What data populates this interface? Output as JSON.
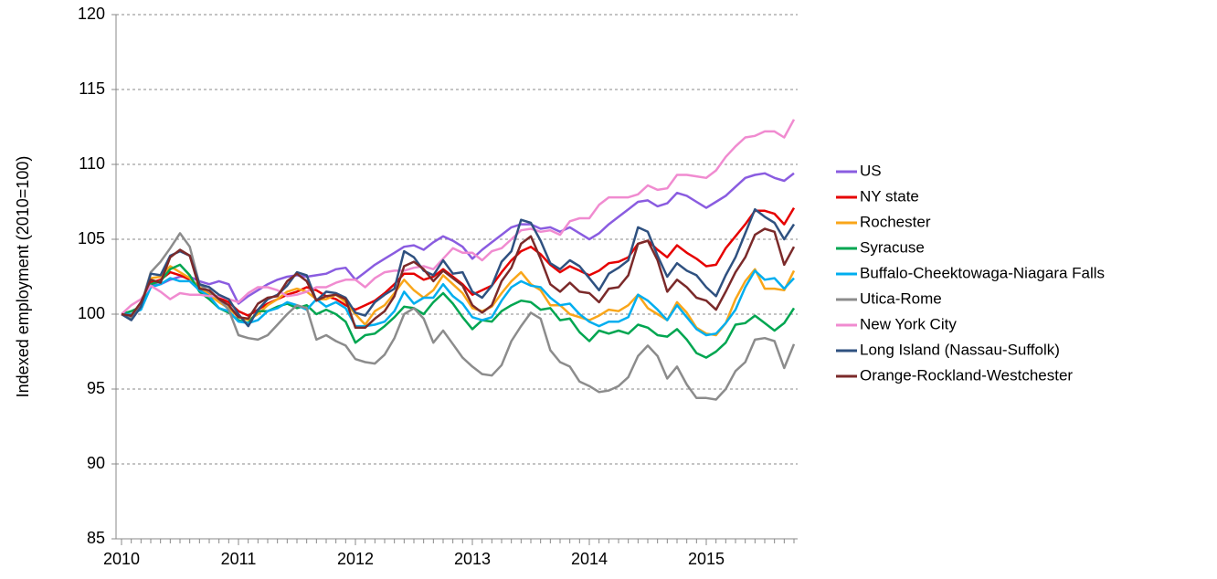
{
  "chart_data": {
    "type": "line",
    "y_label": "Indexed employment (2010=100)",
    "categories": [
      "2010",
      null,
      null,
      null,
      null,
      null,
      null,
      null,
      null,
      null,
      null,
      null,
      "2011",
      null,
      null,
      null,
      null,
      null,
      null,
      null,
      null,
      null,
      null,
      null,
      "2012",
      null,
      null,
      null,
      null,
      null,
      null,
      null,
      null,
      null,
      null,
      null,
      "2013",
      null,
      null,
      null,
      null,
      null,
      null,
      null,
      null,
      null,
      null,
      null,
      "2014",
      null,
      null,
      null,
      null,
      null,
      null,
      null,
      null,
      null,
      null,
      null,
      "2015",
      null,
      null,
      null,
      null,
      null,
      null,
      null,
      null,
      null
    ],
    "ylim": [
      85,
      120
    ],
    "yticks": [
      85,
      90,
      95,
      100,
      105,
      110,
      115,
      120
    ],
    "grid": true,
    "legend": "right",
    "series": [
      {
        "name": "US",
        "color": "#8a5ce0",
        "values": [
          100,
          99.8,
          100.6,
          101.9,
          102.0,
          102.3,
          102.5,
          102.5,
          102.2,
          102.0,
          102.2,
          102.0,
          100.7,
          101.2,
          101.6,
          102.0,
          102.3,
          102.5,
          102.6,
          102.5,
          102.6,
          102.7,
          103.0,
          103.1,
          102.3,
          102.8,
          103.3,
          103.7,
          104.1,
          104.5,
          104.6,
          104.3,
          104.8,
          105.2,
          104.9,
          104.5,
          103.7,
          104.3,
          104.8,
          105.3,
          105.8,
          106.0,
          106.0,
          105.7,
          105.8,
          105.5,
          105.8,
          105.4,
          105.0,
          105.4,
          106.0,
          106.5,
          107.0,
          107.5,
          107.6,
          107.2,
          107.4,
          108.1,
          107.9,
          107.5,
          107.1,
          107.5,
          107.9,
          108.5,
          109.1,
          109.3,
          109.4,
          109.1,
          108.9,
          109.4
        ]
      },
      {
        "name": "NY state",
        "color": "#e60000",
        "values": [
          100,
          99.8,
          100.7,
          102.1,
          102.3,
          102.8,
          102.6,
          102.3,
          101.6,
          101.4,
          101.1,
          100.8,
          100.2,
          99.9,
          100.3,
          100.7,
          101.0,
          101.3,
          101.5,
          101.8,
          101.6,
          101.2,
          101.0,
          100.6,
          100.3,
          100.6,
          100.9,
          101.4,
          102.0,
          102.7,
          102.7,
          102.3,
          102.5,
          103.0,
          102.5,
          102.0,
          101.3,
          101.6,
          101.9,
          102.8,
          103.6,
          104.2,
          104.5,
          104.0,
          103.3,
          102.8,
          103.2,
          102.9,
          102.6,
          102.9,
          103.4,
          103.5,
          103.8,
          104.7,
          104.9,
          104.3,
          103.8,
          104.6,
          104.1,
          103.7,
          103.2,
          103.3,
          104.4,
          105.2,
          106.0,
          106.9,
          106.9,
          106.7,
          106.0,
          107.1
        ]
      },
      {
        "name": "Rochester",
        "color": "#f9a61a",
        "values": [
          100,
          100,
          100.4,
          102.4,
          102.5,
          103.2,
          102.8,
          102.4,
          101.8,
          101.3,
          100.8,
          100.4,
          99.8,
          99.6,
          100.0,
          100.6,
          101.0,
          101.5,
          101.7,
          101.5,
          101.0,
          101.0,
          101.3,
          100.8,
          100.0,
          99.3,
          100.2,
          100.6,
          101.4,
          102.3,
          101.6,
          101.1,
          101.6,
          102.6,
          102.0,
          101.4,
          100.4,
          100.2,
          100.5,
          101.4,
          102.2,
          102.8,
          102.0,
          101.6,
          100.6,
          100.6,
          100.0,
          99.8,
          99.6,
          99.9,
          100.3,
          100.2,
          100.6,
          101.3,
          100.4,
          100.0,
          99.6,
          100.8,
          100.1,
          99.1,
          98.7,
          98.6,
          99.4,
          101.0,
          102.2,
          103.0,
          101.7,
          101.7,
          101.6,
          102.9
        ]
      },
      {
        "name": "Syracuse",
        "color": "#00a651",
        "values": [
          100,
          100.2,
          100.5,
          102.0,
          102.2,
          103.0,
          103.3,
          102.6,
          101.5,
          101.0,
          100.4,
          100.1,
          99.6,
          99.4,
          100.2,
          100.2,
          100.5,
          100.7,
          100.4,
          100.6,
          100.0,
          100.3,
          100.0,
          99.5,
          98.1,
          98.6,
          98.7,
          99.2,
          99.8,
          100.5,
          100.4,
          100.0,
          100.8,
          101.4,
          100.7,
          99.8,
          99.0,
          99.6,
          99.5,
          100.2,
          100.6,
          100.9,
          100.8,
          100.3,
          100.4,
          99.6,
          99.7,
          98.8,
          98.2,
          98.9,
          98.7,
          98.9,
          98.7,
          99.3,
          99.1,
          98.6,
          98.5,
          99.0,
          98.3,
          97.4,
          97.1,
          97.5,
          98.1,
          99.3,
          99.4,
          99.9,
          99.4,
          98.9,
          99.4,
          100.4
        ]
      },
      {
        "name": "Buffalo-Cheektowaga-Niagara Falls",
        "color": "#00aeef",
        "values": [
          100,
          100,
          100.3,
          101.8,
          102.0,
          102.4,
          102.2,
          102.2,
          101.6,
          101.2,
          100.4,
          100.2,
          99.5,
          99.4,
          99.6,
          100.2,
          100.4,
          100.8,
          100.6,
          100.3,
          101.0,
          100.5,
          100.8,
          100.4,
          99.2,
          99.2,
          99.3,
          99.5,
          100.2,
          101.5,
          100.7,
          101.1,
          101.1,
          102.0,
          101.2,
          100.7,
          99.8,
          99.6,
          99.8,
          100.9,
          101.8,
          102.2,
          101.9,
          101.8,
          101.1,
          100.6,
          100.7,
          100.0,
          99.5,
          99.2,
          99.5,
          99.5,
          99.8,
          101.3,
          100.9,
          100.3,
          99.6,
          100.6,
          99.8,
          99.0,
          98.6,
          98.7,
          99.4,
          100.3,
          101.8,
          102.9,
          102.3,
          102.4,
          101.7,
          102.4
        ]
      },
      {
        "name": "Utica-Rome",
        "color": "#8c8c8c",
        "values": [
          100,
          99.7,
          100.6,
          102.8,
          103.5,
          104.4,
          105.4,
          104.5,
          102.0,
          101.5,
          101.0,
          100.3,
          98.6,
          98.4,
          98.3,
          98.6,
          99.3,
          100.0,
          100.6,
          100.4,
          98.3,
          98.6,
          98.2,
          97.9,
          97.0,
          96.8,
          96.7,
          97.3,
          98.4,
          100.0,
          100.4,
          99.7,
          98.1,
          98.9,
          98.0,
          97.1,
          96.5,
          96.0,
          95.9,
          96.6,
          98.2,
          99.2,
          100.1,
          99.7,
          97.6,
          96.8,
          96.5,
          95.5,
          95.2,
          94.8,
          94.9,
          95.2,
          95.8,
          97.2,
          97.9,
          97.2,
          95.7,
          96.5,
          95.3,
          94.4,
          94.4,
          94.3,
          95.0,
          96.2,
          96.8,
          98.3,
          98.4,
          98.2,
          96.4,
          98.0
        ]
      },
      {
        "name": "New York City",
        "color": "#f08bd0",
        "values": [
          100,
          100.6,
          101.0,
          101.9,
          101.5,
          101.0,
          101.4,
          101.3,
          101.3,
          101.2,
          101.2,
          101.0,
          100.8,
          101.4,
          101.8,
          101.8,
          101.6,
          101.2,
          101.3,
          101.5,
          101.8,
          101.8,
          102.1,
          102.3,
          102.3,
          101.8,
          102.4,
          102.8,
          102.9,
          102.9,
          103.1,
          103.2,
          103.0,
          103.7,
          104.4,
          104.1,
          104.1,
          103.6,
          104.2,
          104.4,
          105.0,
          105.6,
          105.7,
          105.5,
          105.6,
          105.3,
          106.2,
          106.4,
          106.4,
          107.3,
          107.8,
          107.8,
          107.8,
          108.0,
          108.6,
          108.3,
          108.4,
          109.3,
          109.3,
          109.2,
          109.1,
          109.6,
          110.5,
          111.2,
          111.8,
          111.9,
          112.2,
          112.2,
          111.8,
          113.0
        ]
      },
      {
        "name": "Long Island (Nassau-Suffolk)",
        "color": "#2f5180",
        "values": [
          100,
          99.6,
          100.5,
          102.7,
          102.6,
          103.9,
          104.2,
          103.9,
          102.0,
          101.8,
          101.3,
          101.0,
          100.0,
          99.2,
          100.3,
          101.0,
          101.3,
          101.9,
          102.8,
          102.6,
          100.9,
          101.5,
          101.4,
          101.1,
          100.1,
          99.9,
          100.8,
          101.3,
          101.7,
          104.2,
          103.8,
          102.9,
          102.6,
          103.6,
          102.7,
          102.8,
          101.5,
          101.1,
          101.9,
          103.5,
          104.2,
          106.3,
          106.1,
          104.9,
          103.4,
          103.0,
          103.6,
          103.2,
          102.4,
          101.6,
          102.7,
          103.1,
          103.6,
          105.8,
          105.5,
          103.9,
          102.5,
          103.4,
          102.9,
          102.6,
          101.8,
          101.2,
          102.6,
          103.8,
          105.4,
          107.0,
          106.5,
          106.1,
          105.0,
          106.0
        ]
      },
      {
        "name": "Orange-Rockland-Westchester",
        "color": "#7b2a2a",
        "values": [
          100,
          99.9,
          100.8,
          102.3,
          102.1,
          103.8,
          104.3,
          103.9,
          101.7,
          101.6,
          101.0,
          100.6,
          99.8,
          99.7,
          100.7,
          101.1,
          101.2,
          102.2,
          102.7,
          102.2,
          100.9,
          101.2,
          101.3,
          101.0,
          99.1,
          99.1,
          99.7,
          100.2,
          101.2,
          103.2,
          103.5,
          103.0,
          102.2,
          102.9,
          102.4,
          101.9,
          100.6,
          100.1,
          100.6,
          102.2,
          103.1,
          104.7,
          105.2,
          103.7,
          102.0,
          101.5,
          102.1,
          101.5,
          101.4,
          100.8,
          101.7,
          101.8,
          102.6,
          104.7,
          104.9,
          103.6,
          101.5,
          102.3,
          101.8,
          101.1,
          100.9,
          100.3,
          101.5,
          102.8,
          103.8,
          105.3,
          105.7,
          105.5,
          103.3,
          104.5
        ]
      }
    ]
  }
}
